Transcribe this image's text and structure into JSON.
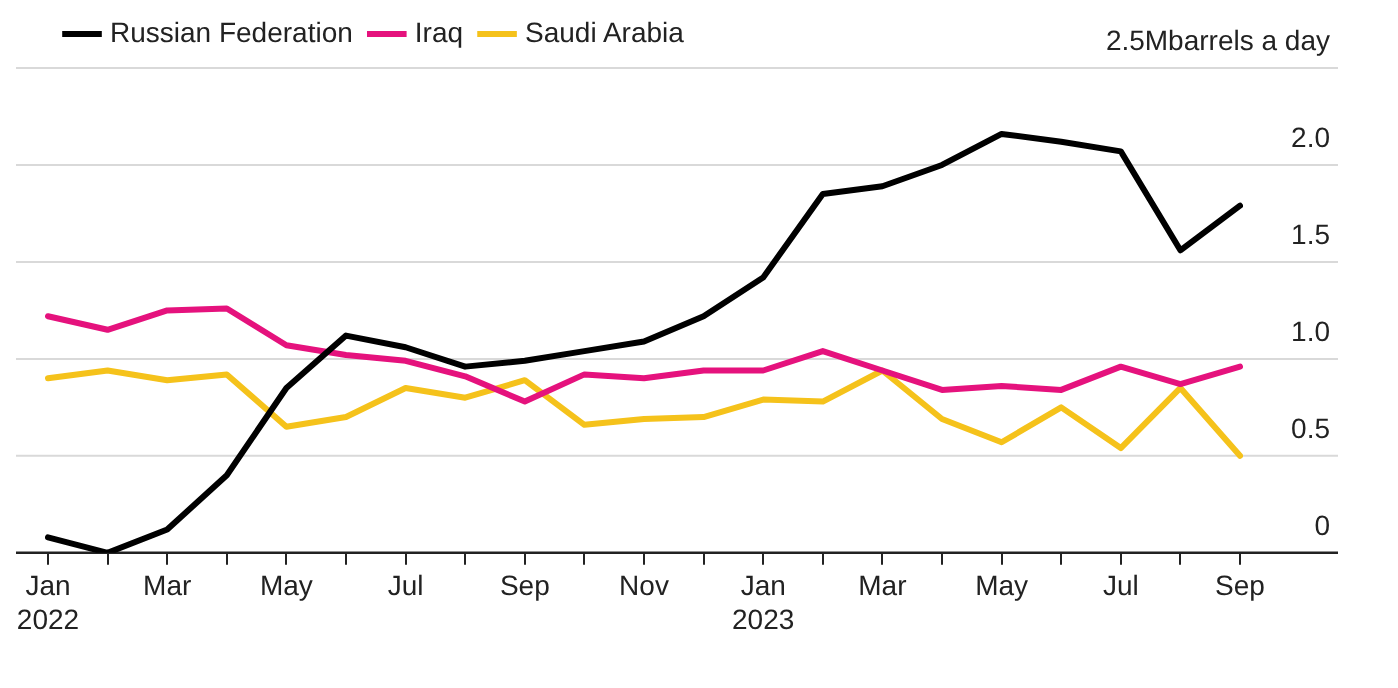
{
  "chart_data": {
    "type": "line",
    "categories": [
      "Jan\n2022",
      null,
      "Mar",
      null,
      "May",
      null,
      "Jul",
      null,
      "Sep",
      null,
      "Nov",
      null,
      "Jan\n2023",
      null,
      "Mar",
      null,
      "May",
      null,
      "Jul",
      null,
      "Sep"
    ],
    "series": [
      {
        "name": "Russian Federation",
        "color": "#000000",
        "values": [
          0.08,
          0,
          0.12,
          0.4,
          0.85,
          1.12,
          1.06,
          0.96,
          0.99,
          1.04,
          1.09,
          1.22,
          1.42,
          1.85,
          1.89,
          2.0,
          2.16,
          2.12,
          2.07,
          1.56,
          1.79
        ]
      },
      {
        "name": "Iraq",
        "color": "#e5127d",
        "values": [
          1.22,
          1.15,
          1.25,
          1.26,
          1.07,
          1.02,
          0.99,
          0.91,
          0.78,
          0.92,
          0.9,
          0.94,
          0.94,
          1.04,
          0.94,
          0.84,
          0.86,
          0.84,
          0.96,
          0.87,
          0.96
        ]
      },
      {
        "name": "Saudi Arabia",
        "color": "#f5c21b",
        "values": [
          0.9,
          0.94,
          0.89,
          0.92,
          0.65,
          0.7,
          0.85,
          0.8,
          0.89,
          0.66,
          0.69,
          0.7,
          0.79,
          0.78,
          0.94,
          0.69,
          0.57,
          0.75,
          0.54,
          0.85,
          0.5
        ]
      }
    ],
    "ylim": [
      0,
      2.5
    ],
    "yticks": [
      0,
      0.5,
      {
        "value": 1,
        "label": "1.0"
      },
      1.5,
      {
        "value": 2,
        "label": "2.0"
      },
      {
        "value": 2.5,
        "label": "2.5Mbarrels a day"
      }
    ],
    "grid": "y",
    "legend": "top left",
    "marker": "none",
    "line_style": "solid"
  }
}
